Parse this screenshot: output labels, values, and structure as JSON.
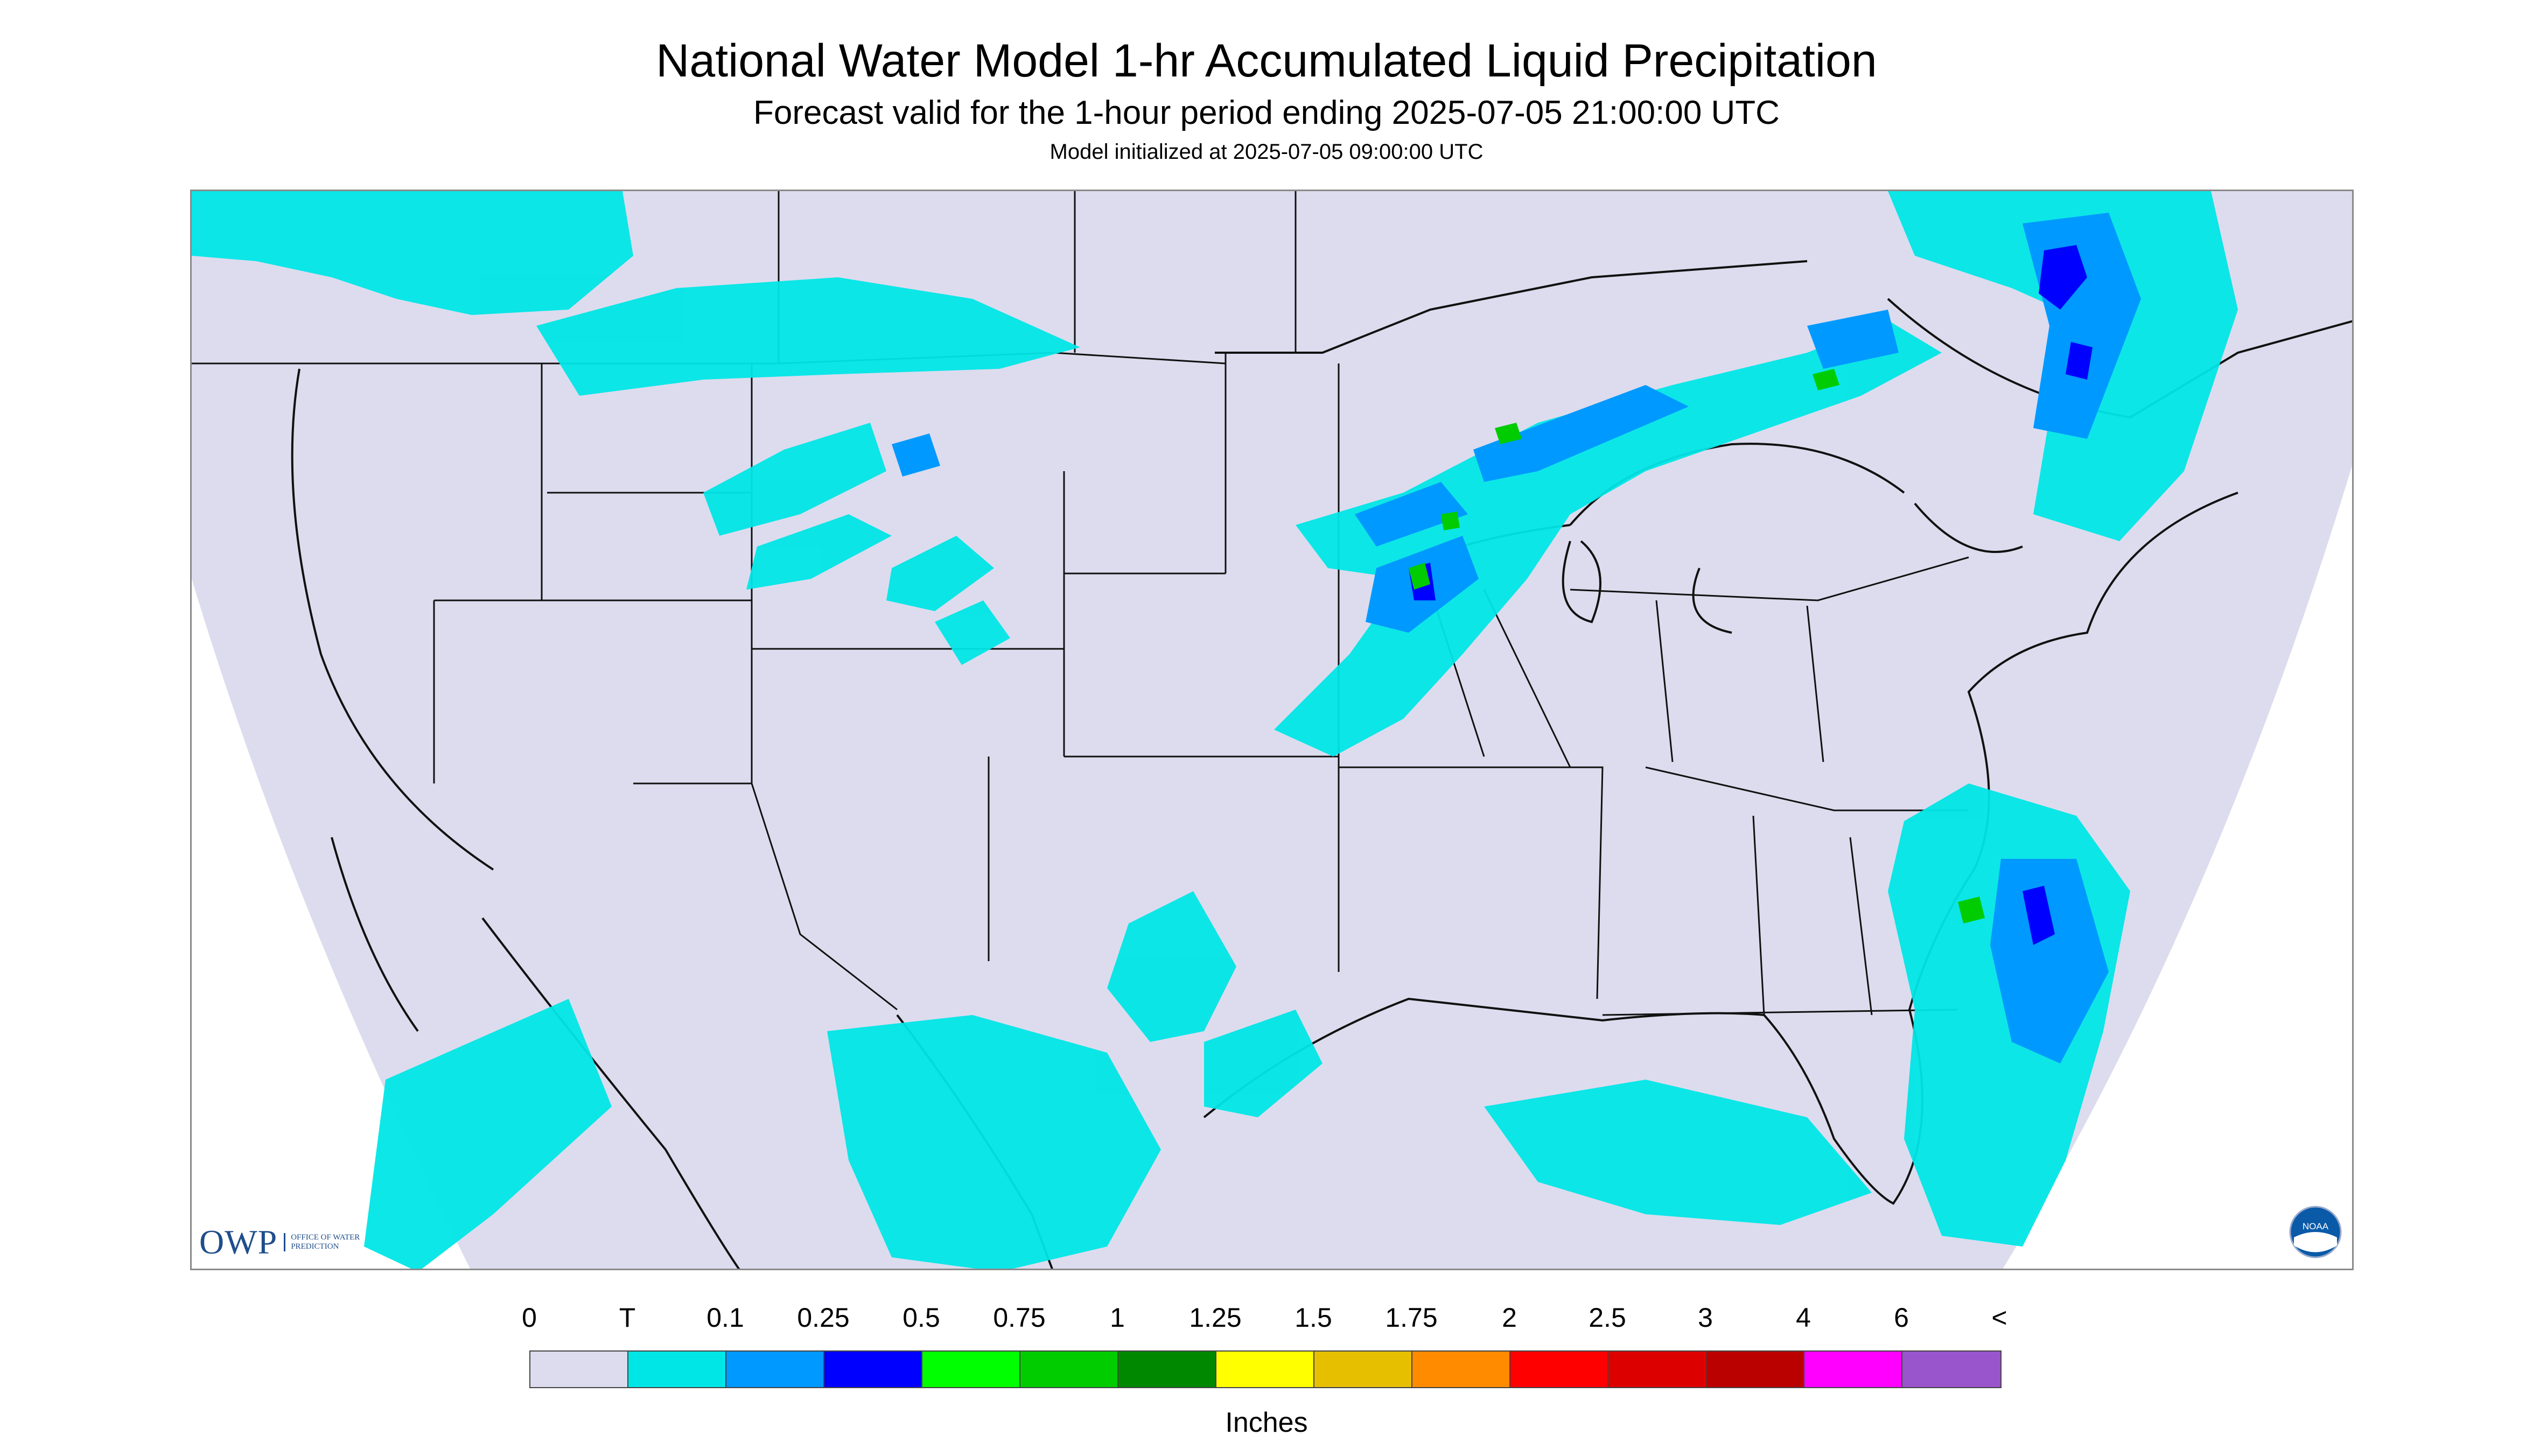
{
  "header": {
    "title": "National Water Model 1-hr Accumulated Liquid Precipitation",
    "subtitle": "Forecast valid for the 1-hour period ending 2025-07-05 21:00:00 UTC",
    "init_note": "Model initialized at 2025-07-05 09:00:00 UTC"
  },
  "logos": {
    "owp_text": "OWP",
    "owp_subtext": "OFFICE OF WATER PREDICTION",
    "noaa_text": "NOAA"
  },
  "colors": {
    "domain_background": "#dcdcee",
    "trace": "#00e6e6",
    "light_blue": "#0099ff",
    "blue": "#0000ff",
    "green": "#00cc00",
    "dark_green": "#008800"
  },
  "legend": {
    "units": "Inches",
    "labels": [
      "0",
      "T",
      "0.1",
      "0.25",
      "0.5",
      "0.75",
      "1",
      "1.25",
      "1.5",
      "1.75",
      "2",
      "2.5",
      "3",
      "4",
      "6",
      "<"
    ],
    "bins": [
      {
        "color": "#dcdcee"
      },
      {
        "color": "#00e6e6"
      },
      {
        "color": "#0099ff"
      },
      {
        "color": "#0000ff"
      },
      {
        "color": "#00ff00"
      },
      {
        "color": "#00cc00"
      },
      {
        "color": "#008800"
      },
      {
        "color": "#ffff00"
      },
      {
        "color": "#e6c000"
      },
      {
        "color": "#ff8c00"
      },
      {
        "color": "#ff0000"
      },
      {
        "color": "#dd0000"
      },
      {
        "color": "#bb0000"
      },
      {
        "color": "#ff00ff"
      },
      {
        "color": "#9955cc"
      }
    ]
  }
}
